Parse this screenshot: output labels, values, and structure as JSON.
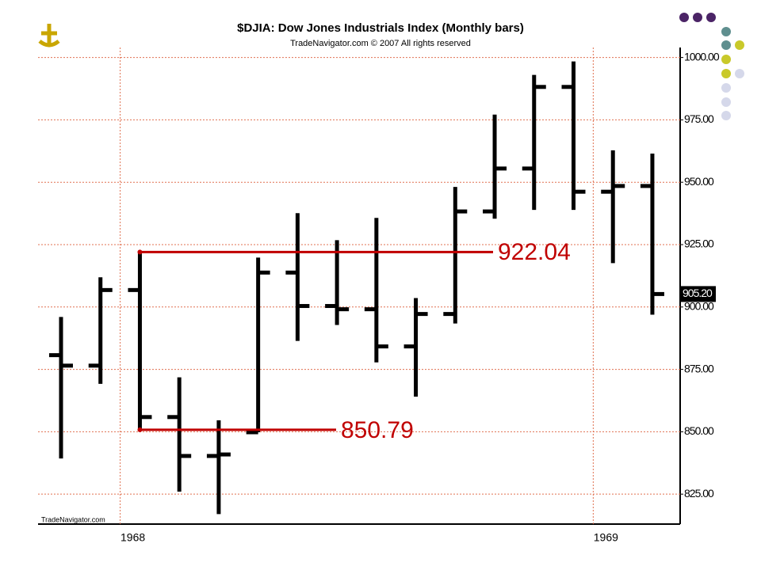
{
  "chart_data": {
    "type": "ohlc",
    "title": "$DJIA:  Dow Jones Industrials Index  (Monthly bars)",
    "subtitle": "TradeNavigator.com © 2007 All rights reserved",
    "watermark": "TradeNavigator.com",
    "categories": [
      null,
      null,
      "1968",
      null,
      null,
      null,
      null,
      null,
      null,
      null,
      null,
      null,
      null,
      null,
      "1969",
      null
    ],
    "open": [
      880.7,
      876.5,
      906.8,
      855.9,
      840.3,
      849.8,
      913.8,
      900.4,
      899.1,
      884.2,
      897.2,
      938.3,
      955.5,
      988.2,
      946.2,
      948.5
    ],
    "high": [
      896.0,
      911.9,
      922.04,
      871.8,
      854.6,
      919.8,
      937.6,
      926.8,
      935.7,
      903.6,
      948.1,
      977.1,
      993.0,
      998.4,
      962.8,
      961.5
    ],
    "low": [
      839.3,
      869.2,
      850.79,
      826.0,
      817.0,
      849.8,
      886.4,
      892.8,
      877.8,
      864.1,
      893.4,
      935.4,
      938.9,
      938.9,
      917.6,
      896.9
    ],
    "close": [
      876.5,
      906.8,
      855.9,
      840.3,
      840.9,
      913.8,
      900.4,
      899.1,
      884.2,
      897.2,
      938.3,
      955.5,
      988.2,
      946.2,
      948.5,
      905.2
    ],
    "last_label": "905.20",
    "color": "#000000",
    "annotations": [
      {
        "value": 922.04
      },
      {
        "value": 850.79
      }
    ],
    "annotation_color": "#c00000",
    "ylim": [
      813,
      1004
    ],
    "yticks": [
      {
        "value": 825,
        "label": "825.00"
      },
      {
        "value": 850,
        "label": "850.00"
      },
      {
        "value": 875,
        "label": "875.00"
      },
      {
        "value": 900,
        "label": "900.00"
      },
      {
        "value": 925,
        "label": "925.00"
      },
      {
        "value": 950,
        "label": "950.00"
      },
      {
        "value": 975,
        "label": "975.00"
      },
      {
        "value": 1000,
        "label": "1000.00"
      }
    ],
    "grid": true
  }
}
